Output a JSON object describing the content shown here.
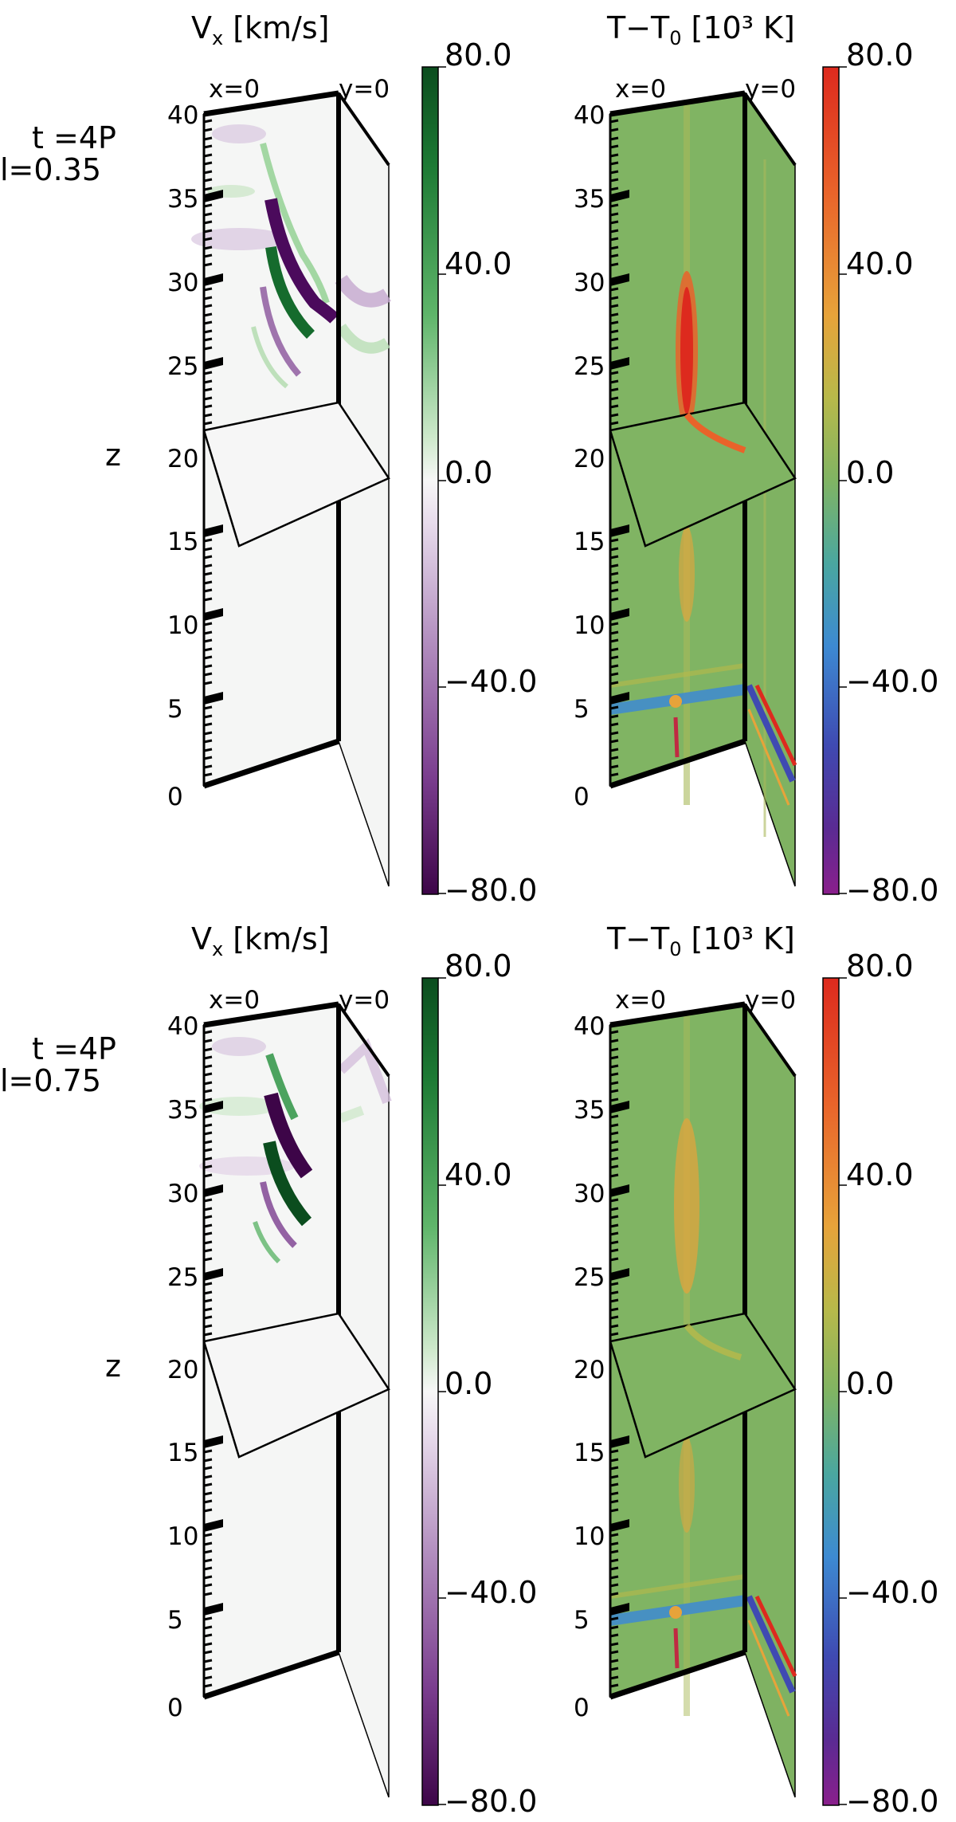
{
  "figure": {
    "rows": [
      {
        "time_label": "t  =4P",
        "l_label": "l=0.35",
        "panels": [
          {
            "title": "V",
            "title_sub": "x",
            "title_unit": "[km/s]",
            "face_left_label": "x=0",
            "face_right_label": "y=0",
            "colormap": "green-white-purple",
            "colorbar_ticks": [
              "80.0",
              "40.0",
              "0.0",
              "−40.0",
              "−80.0"
            ]
          },
          {
            "title": "T−T",
            "title_sub": "0",
            "title_unit": "[10³ K]",
            "face_left_label": "x=0",
            "face_right_label": "y=0",
            "colormap": "rainbow",
            "colorbar_ticks": [
              "80.0",
              "40.0",
              "0.0",
              "−40.0",
              "−80.0"
            ]
          }
        ]
      },
      {
        "time_label": "t  =4P",
        "l_label": "l=0.75",
        "panels": [
          {
            "title": "V",
            "title_sub": "x",
            "title_unit": "[km/s]",
            "face_left_label": "x=0",
            "face_right_label": "y=0",
            "colormap": "green-white-purple",
            "colorbar_ticks": [
              "80.0",
              "40.0",
              "0.0",
              "−40.0",
              "−80.0"
            ]
          },
          {
            "title": "T−T",
            "title_sub": "0",
            "title_unit": "[10³ K]",
            "face_left_label": "x=0",
            "face_right_label": "y=0",
            "colormap": "rainbow",
            "colorbar_ticks": [
              "80.0",
              "40.0",
              "0.0",
              "−40.0",
              "−80.0"
            ]
          }
        ]
      }
    ],
    "z_axis": {
      "label": "z",
      "ticks": [
        "40",
        "35",
        "30",
        "25",
        "20",
        "15",
        "10",
        "5",
        "0"
      ]
    }
  }
}
